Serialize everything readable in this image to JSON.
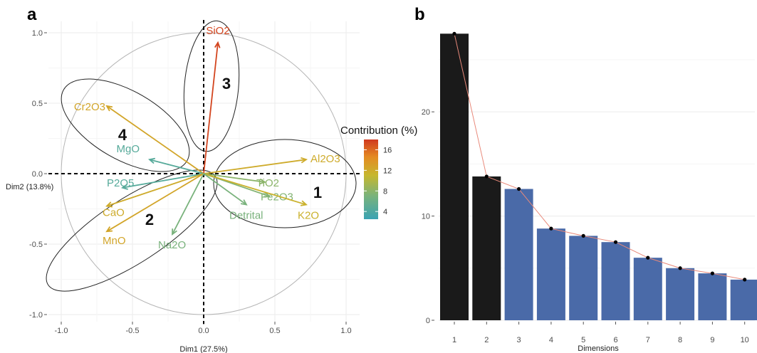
{
  "chart_data": [
    {
      "type": "scatter",
      "panel_label": "a",
      "xlabel": "Dim1 (27.5%)",
      "ylabel": "Dim2 (13.8%)",
      "xlim": [
        -1.0,
        1.0
      ],
      "ylim": [
        -1.0,
        1.0
      ],
      "x_ticks": [
        "-1.0",
        "-0.5",
        "0.0",
        "0.5",
        "1.0"
      ],
      "y_ticks": [
        "1.0",
        "0.5",
        "0.0",
        "-0.5",
        "-1.0"
      ],
      "grid": true,
      "variables": [
        {
          "name": "SiO2",
          "x": 0.1,
          "y": 0.93,
          "contrib": 17.5
        },
        {
          "name": "Cr2O3",
          "x": -0.68,
          "y": 0.48,
          "contrib": 12.5
        },
        {
          "name": "MgO",
          "x": -0.38,
          "y": 0.1,
          "contrib": 4.5
        },
        {
          "name": "Al2O3",
          "x": 0.72,
          "y": 0.1,
          "contrib": 12.0
        },
        {
          "name": "TiO2",
          "x": 0.43,
          "y": -0.06,
          "contrib": 8.0
        },
        {
          "name": "Fe2O3",
          "x": 0.46,
          "y": -0.16,
          "contrib": 7.5
        },
        {
          "name": "K2O",
          "x": 0.72,
          "y": -0.22,
          "contrib": 11.5
        },
        {
          "name": "Detrital",
          "x": 0.3,
          "y": -0.22,
          "contrib": 7.0
        },
        {
          "name": "P2O5",
          "x": -0.57,
          "y": -0.1,
          "contrib": 4.5
        },
        {
          "name": "CaO",
          "x": -0.68,
          "y": -0.23,
          "contrib": 12.0
        },
        {
          "name": "MnO",
          "x": -0.68,
          "y": -0.41,
          "contrib": 12.5
        },
        {
          "name": "Na2O",
          "x": -0.22,
          "y": -0.43,
          "contrib": 7.0
        }
      ],
      "groups": [
        "1",
        "2",
        "3",
        "4"
      ],
      "legend": {
        "title": "Contribution (%)",
        "ticks": [
          16,
          12,
          8,
          4
        ],
        "range": [
          2.5,
          18
        ],
        "colors": [
          "#3aa3b3",
          "#7bb37a",
          "#c6b72e",
          "#e48b22",
          "#d0391f"
        ]
      }
    },
    {
      "type": "bar",
      "panel_label": "b",
      "xlabel": "Dimensions",
      "ylabel": "",
      "categories": [
        "1",
        "2",
        "3",
        "4",
        "5",
        "6",
        "7",
        "8",
        "9",
        "10"
      ],
      "values": [
        27.5,
        13.8,
        12.6,
        8.8,
        8.1,
        7.5,
        6.0,
        5.0,
        4.5,
        3.9
      ],
      "ylim": [
        0,
        28
      ],
      "y_ticks": [
        0,
        10,
        20
      ],
      "highlight_count": 2,
      "colors": {
        "highlight": "#1a1a1a",
        "normal": "#4a6aa8",
        "line": "#e8897a"
      }
    }
  ]
}
